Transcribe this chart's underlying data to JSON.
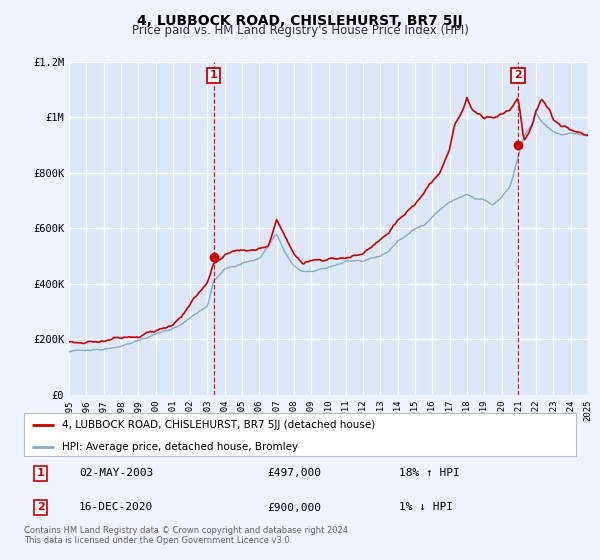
{
  "title": "4, LUBBOCK ROAD, CHISLEHURST, BR7 5JJ",
  "subtitle": "Price paid vs. HM Land Registry's House Price Index (HPI)",
  "bg_color": "#f0f4ff",
  "plot_bg_color": "#dce8f8",
  "grid_color": "#ffffff",
  "red_line_color": "#cc0000",
  "blue_line_color": "#88aacc",
  "sale1_year": 2003.37,
  "sale1_price": 497000,
  "sale2_year": 2020.96,
  "sale2_price": 900000,
  "xmin": 1995,
  "xmax": 2025,
  "ymin": 0,
  "ymax": 1200000,
  "yticks": [
    0,
    200000,
    400000,
    600000,
    800000,
    1000000,
    1200000
  ],
  "ytick_labels": [
    "£0",
    "£200K",
    "£400K",
    "£600K",
    "£800K",
    "£1M",
    "£1.2M"
  ],
  "xticks": [
    1995,
    1996,
    1997,
    1998,
    1999,
    2000,
    2001,
    2002,
    2003,
    2004,
    2005,
    2006,
    2007,
    2008,
    2009,
    2010,
    2011,
    2012,
    2013,
    2014,
    2015,
    2016,
    2017,
    2018,
    2019,
    2020,
    2021,
    2022,
    2023,
    2024,
    2025
  ],
  "legend_label_red": "4, LUBBOCK ROAD, CHISLEHURST, BR7 5JJ (detached house)",
  "legend_label_blue": "HPI: Average price, detached house, Bromley",
  "annotation1_date": "02-MAY-2003",
  "annotation1_price": "£497,000",
  "annotation1_hpi": "18% ↑ HPI",
  "annotation2_date": "16-DEC-2020",
  "annotation2_price": "£900,000",
  "annotation2_hpi": "1% ↓ HPI",
  "footer1": "Contains HM Land Registry data © Crown copyright and database right 2024.",
  "footer2": "This data is licensed under the Open Government Licence v3.0."
}
